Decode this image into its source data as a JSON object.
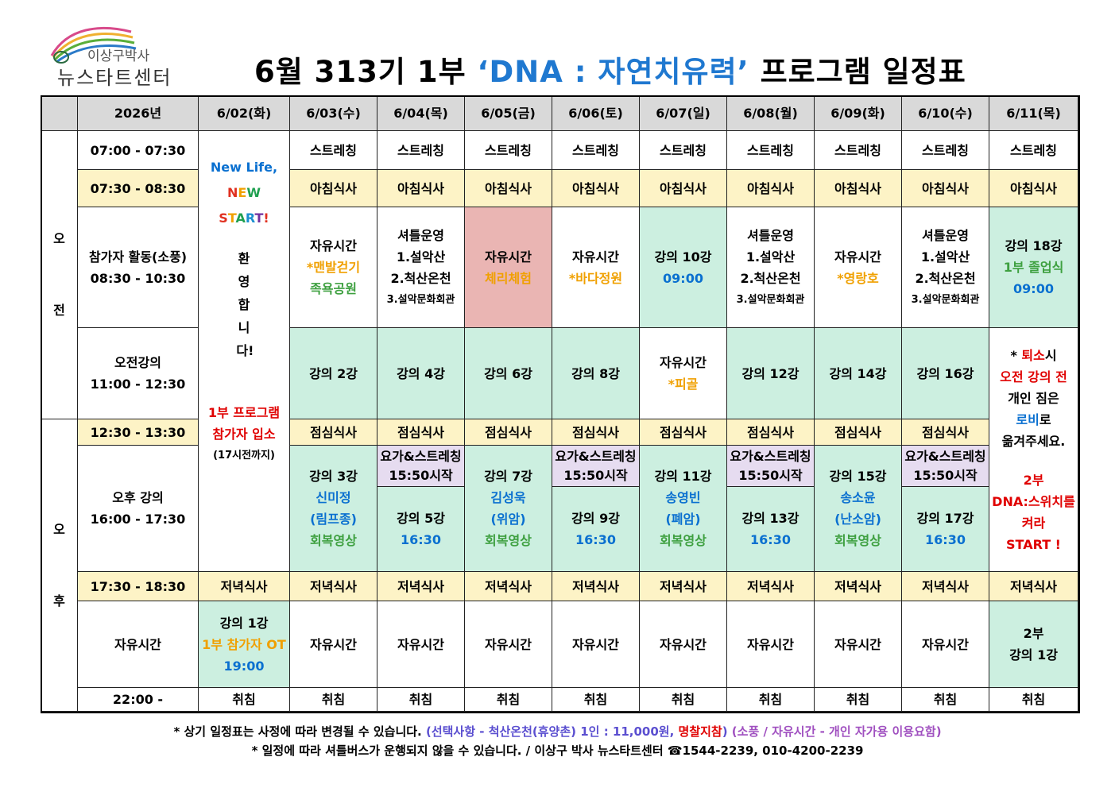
{
  "header": {
    "logo_line1": "이상구박사",
    "logo_line2": "뉴스타트센터",
    "title": [
      "6월 313기 1부 ",
      "‘DNA : 자연치유력’",
      " 프로그램 일정표"
    ]
  },
  "table": {
    "header": [
      "2026년",
      "6/02(화)",
      "6/03(수)",
      "6/04(목)",
      "6/05(금)",
      "6/06(토)",
      "6/07(일)",
      "6/08(월)",
      "6/09(화)",
      "6/10(수)",
      "6/11(목)"
    ],
    "periods": [
      "오전",
      "오후"
    ],
    "cells": [
      {
        "lines": [
          "07:00 - 07:30"
        ]
      },
      {
        "lines": [
          "07:30 - 08:30"
        ]
      },
      {
        "lines": [
          "참가자 활동(소풍)",
          "08:30 - 10:30"
        ]
      },
      {
        "lines": [
          "오전강의",
          "11:00 - 12:30"
        ]
      },
      {
        "lines": [
          "12:30 - 13:30"
        ]
      },
      {
        "lines": [
          "오후 강의",
          "16:00 - 17:30"
        ]
      },
      {
        "lines": [
          "17:30 - 18:30"
        ]
      },
      {
        "lines": [
          "자유시간"
        ]
      },
      {
        "lines": [
          "22:00 -"
        ]
      },
      {
        "lines": [
          "New Life,",
          "NEW",
          "START!",
          "환영합니다!",
          "1부 프로그램",
          "참가자 입소",
          "(17시전까지)"
        ]
      },
      {
        "lines": [
          "저녁식사"
        ]
      },
      {
        "lines": [
          "강의 1강",
          "1부 참가자 OT",
          "19:00"
        ]
      },
      {
        "lines": [
          "취침"
        ]
      },
      {
        "lines": [
          "스트레칭"
        ]
      },
      {
        "lines": [
          "스트레칭"
        ]
      },
      {
        "lines": [
          "스트레칭"
        ]
      },
      {
        "lines": [
          "스트레칭"
        ]
      },
      {
        "lines": [
          "스트레칭"
        ]
      },
      {
        "lines": [
          "스트레칭"
        ]
      },
      {
        "lines": [
          "스트레칭"
        ]
      },
      {
        "lines": [
          "스트레칭"
        ]
      },
      {
        "lines": [
          "스트레칭"
        ]
      },
      {
        "lines": [
          "아침식사"
        ]
      },
      {
        "lines": [
          "아침식사"
        ]
      },
      {
        "lines": [
          "아침식사"
        ]
      },
      {
        "lines": [
          "아침식사"
        ]
      },
      {
        "lines": [
          "아침식사"
        ]
      },
      {
        "lines": [
          "아침식사"
        ]
      },
      {
        "lines": [
          "아침식사"
        ]
      },
      {
        "lines": [
          "아침식사"
        ]
      },
      {
        "lines": [
          "아침식사"
        ]
      },
      {
        "lines": [
          "자유시간",
          "*맨발걷기",
          "족욕공원"
        ]
      },
      {
        "lines": [
          "셔틀운영",
          "1.설악산",
          "2.척산온천",
          "3.설악문화회관"
        ]
      },
      {
        "lines": [
          "자유시간",
          "체리체험"
        ]
      },
      {
        "lines": [
          "자유시간",
          "*바다정원"
        ]
      },
      {
        "lines": [
          "강의 10강",
          "09:00"
        ]
      },
      {
        "lines": [
          "셔틀운영",
          "1.설악산",
          "2.척산온천",
          "3.설악문화회관"
        ]
      },
      {
        "lines": [
          "자유시간",
          "*영랑호"
        ]
      },
      {
        "lines": [
          "셔틀운영",
          "1.설악산",
          "2.척산온천",
          "3.설악문화회관"
        ]
      },
      {
        "lines": [
          "강의 18강",
          "1부 졸업식",
          "09:00"
        ]
      },
      {
        "lines": [
          "강의 2강"
        ]
      },
      {
        "lines": [
          "강의 4강"
        ]
      },
      {
        "lines": [
          "강의 6강"
        ]
      },
      {
        "lines": [
          "강의 8강"
        ]
      },
      {
        "lines": [
          "자유시간",
          "*피골"
        ]
      },
      {
        "lines": [
          "강의 12강"
        ]
      },
      {
        "lines": [
          "강의 14강"
        ]
      },
      {
        "lines": [
          "강의 16강"
        ]
      },
      {
        "lines": [
          [
            "* ",
            "퇴소",
            "시"
          ],
          "오전 강의 전",
          "개인 짐은",
          [
            "로비",
            "로"
          ],
          "옮겨주세요.",
          "2부",
          "DNA:스위치를",
          "켜라",
          "START !"
        ]
      },
      {
        "lines": [
          "점심식사"
        ]
      },
      {
        "lines": [
          "점심식사"
        ]
      },
      {
        "lines": [
          "점심식사"
        ]
      },
      {
        "lines": [
          "점심식사"
        ]
      },
      {
        "lines": [
          "점심식사"
        ]
      },
      {
        "lines": [
          "점심식사"
        ]
      },
      {
        "lines": [
          "점심식사"
        ]
      },
      {
        "lines": [
          "점심식사"
        ]
      },
      {
        "lines": [
          "강의 3강",
          "신미정",
          "(림프종)",
          "회복영상"
        ]
      },
      {
        "lines": [
          "요가&스트레칭",
          "15:50시작"
        ]
      },
      {
        "lines": [
          "강의 5강",
          "16:30"
        ]
      },
      {
        "lines": [
          "강의 7강",
          "김성욱",
          "(위암)",
          "회복영상"
        ]
      },
      {
        "lines": [
          "요가&스트레칭",
          "15:50시작"
        ]
      },
      {
        "lines": [
          "강의 9강",
          "16:30"
        ]
      },
      {
        "lines": [
          "강의 11강",
          "송영빈",
          "(폐암)",
          "회복영상"
        ]
      },
      {
        "lines": [
          "요가&스트레칭",
          "15:50시작"
        ]
      },
      {
        "lines": [
          "강의 13강",
          "16:30"
        ]
      },
      {
        "lines": [
          "강의 15강",
          "송소윤",
          "(난소암)",
          "회복영상"
        ]
      },
      {
        "lines": [
          "요가&스트레칭",
          "15:50시작"
        ]
      },
      {
        "lines": [
          "강의 17강",
          "16:30"
        ]
      },
      {
        "lines": [
          "저녁식사"
        ]
      },
      {
        "lines": [
          "저녁식사"
        ]
      },
      {
        "lines": [
          "저녁식사"
        ]
      },
      {
        "lines": [
          "저녁식사"
        ]
      },
      {
        "lines": [
          "저녁식사"
        ]
      },
      {
        "lines": [
          "저녁식사"
        ]
      },
      {
        "lines": [
          "저녁식사"
        ]
      },
      {
        "lines": [
          "저녁식사"
        ]
      },
      {
        "lines": [
          "저녁식사"
        ]
      },
      {
        "lines": [
          "자유시간"
        ]
      },
      {
        "lines": [
          "자유시간"
        ]
      },
      {
        "lines": [
          "자유시간"
        ]
      },
      {
        "lines": [
          "자유시간"
        ]
      },
      {
        "lines": [
          "자유시간"
        ]
      },
      {
        "lines": [
          "자유시간"
        ]
      },
      {
        "lines": [
          "자유시간"
        ]
      },
      {
        "lines": [
          "자유시간"
        ]
      },
      {
        "lines": [
          "2부",
          "강의 1강"
        ]
      },
      {
        "lines": [
          "취침"
        ]
      },
      {
        "lines": [
          "취침"
        ]
      },
      {
        "lines": [
          "취침"
        ]
      },
      {
        "lines": [
          "취침"
        ]
      },
      {
        "lines": [
          "취침"
        ]
      },
      {
        "lines": [
          "취침"
        ]
      },
      {
        "lines": [
          "취침"
        ]
      },
      {
        "lines": [
          "취침"
        ]
      },
      {
        "lines": [
          "취침"
        ]
      }
    ]
  },
  "footer": {
    "line1": [
      "* 상기 일정표는 사정에 따라 변경될 수 있습니다. ",
      "(선택사항 - 척산온천(휴양촌) 1인 : 11,000원, ",
      "명찰지참",
      ")",
      " (소풍 / 자유시간 - 개인 자가용 이용요함)"
    ],
    "line2": "* 일정에 따라 셔틀버스가 운행되지 않을 수 있습니다. / 이상구 박사 뉴스타트센터 ☎1544-2239, 010-4200-2239"
  }
}
